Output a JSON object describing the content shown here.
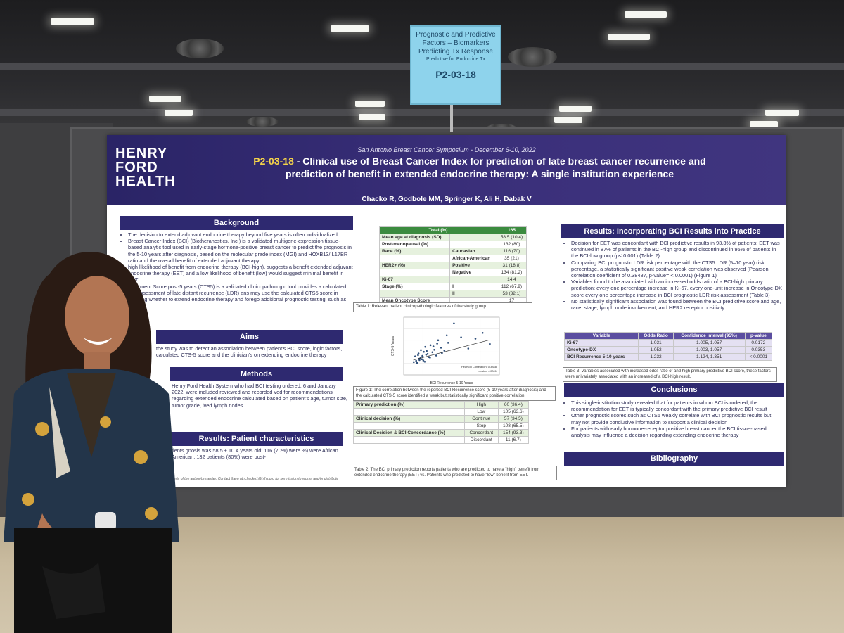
{
  "sign": {
    "line1": "Prognostic and Predictive",
    "line2": "Factors – Biomarkers",
    "line3": "Predicting Tx Response",
    "line4": "Predictive for Endocrine Tx",
    "code": "P2-03-18"
  },
  "poster": {
    "symposium": "San Antonio Breast Cancer Symposium - December 6-10, 2022",
    "logo": [
      "HENRY",
      "FORD",
      "HEALTH"
    ],
    "title_code": "P2-03-18",
    "title_line1": " - Clinical use of Breast Cancer Index for prediction of late breast cancer recurrence and",
    "title_line2": "prediction of benefit in extended endocrine therapy: A single institution experience",
    "authors": "Chacko R, Godbole MM, Springer K, Ali H, Dabak V"
  },
  "sections": {
    "background": "Background",
    "aims": "Aims",
    "methods": "Methods",
    "results_patients": "Results: Patient characteristics",
    "results_bci": "Results: Incorporating BCI Results into Practice",
    "conclusions": "Conclusions",
    "bibliography": "Bibliography"
  },
  "background_items": [
    "The decision to extend adjuvant endocrine therapy beyond five years is often individualized",
    "Breast Cancer Index (BCI) (Biotheranostics, Inc.) is a validated multigene-expression tissue-based analytic tool used in early-stage hormone-positive breast cancer to predict the prognosis in the 5-10 years after diagnosis, based on the molecular grade index (MGI) and HOXB13/IL17BR ratio and the overall benefit of extended adjuvant therapy",
    "high likelihood of benefit from endocrine therapy (BCI-high), suggests a benefit extended adjuvant endocrine therapy (EET) and a low likelihood of benefit (low) would suggest minimal benefit in EET",
    "Treatment Score post-5 years (CTS5) is a validated clinicopathologic tool provides a calculated risk assessment of late distant recurrence (LDR) ans may use the calculated CTS5 score in deciding whether to extend endocrine therapy and forego additional prognostic testing, such as BCI"
  ],
  "aims_text": "the study was to detect an association between patient's BCI score, logic factors, calculated CTS-5 score and the clinician's on extending endocrine therapy",
  "methods_text": "Henry Ford Health System who had BCI testing ordered, 6 and January 2022, were included reviewed and recorded ved for recommendations regarding extended endocrine calculated based on patient's age, tumor size, tumor grade, lved lymph nodes",
  "results_patients_text": "tients gnosis was 58.5 ± 10.4 years old; 116 (70%) were %) were African American; 132 patients (80%) were post-",
  "table1": {
    "header": [
      "Total (%)",
      "165"
    ],
    "rows": [
      [
        "Mean age at diagnosis (SD)",
        "",
        "58.5 (10.4)"
      ],
      [
        "Post-menopausal (%)",
        "",
        "132 (80)"
      ],
      [
        "Race (%)",
        "Caucasian",
        "116 (70)"
      ],
      [
        "",
        "African-American",
        "35 (21)"
      ],
      [
        "HER2+ (%)",
        "Positive",
        "31 (18.8)"
      ],
      [
        "",
        "Negative",
        "134 (81.2)"
      ],
      [
        "Ki-67",
        "",
        "14.4"
      ],
      [
        "Stage (%)",
        "I",
        "112 (67.9)"
      ],
      [
        "",
        "II",
        "53 (32.1)"
      ],
      [
        "Mean Oncotype Score",
        "",
        "17"
      ]
    ],
    "caption": "Table 1: Relevant patient clinicopathologic features of the study group."
  },
  "chart_data": {
    "type": "scatter",
    "title": "",
    "xlabel": "BCI Recurrence 5-10 Years",
    "ylabel": "CTS-5 Years",
    "annotation": "Pearson Correlation: 0.3848",
    "annotation2": "p-value < 0001",
    "x": [
      2.1,
      2.4,
      2.6,
      2.8,
      3.0,
      3.1,
      3.3,
      3.5,
      3.6,
      3.8,
      4.0,
      4.2,
      4.4,
      4.5,
      4.7,
      5.0,
      5.3,
      5.6,
      6.0,
      6.4,
      6.8,
      7.2,
      7.8,
      8.5,
      9.3,
      10.5,
      12.0,
      13.5,
      15.0,
      16.5,
      18.0,
      3.2,
      3.9,
      4.1,
      4.8,
      5.5,
      6.2,
      7.0,
      8.0,
      9.0
    ],
    "y": [
      3.1,
      4.5,
      3.4,
      2.9,
      4.8,
      5.2,
      3.6,
      4.1,
      6.0,
      3.8,
      4.4,
      5.6,
      3.2,
      6.8,
      4.9,
      5.1,
      4.3,
      7.2,
      5.5,
      6.1,
      4.7,
      8.4,
      6.6,
      5.9,
      7.8,
      12.5,
      9.1,
      6.4,
      8.8,
      10.2,
      7.5,
      3.9,
      4.6,
      3.5,
      5.8,
      4.2,
      6.9,
      7.6,
      5.3,
      9.6
    ],
    "trend": [
      [
        2.0,
        3.6
      ],
      [
        18.0,
        8.5
      ]
    ],
    "caption": "Figure 1: The correlation between the reported BCI Recurrence score (5-10 years after diagnosis) and the calculated CTS-5 score identified a weak but statistically significant positive correlation."
  },
  "table2": {
    "rows": [
      [
        "Primary prediction (%)",
        "High",
        "60 (36.4)"
      ],
      [
        "",
        "Low",
        "105 (63.6)"
      ],
      [
        "Clinical decision (%)",
        "Continue",
        "57 (34.5)"
      ],
      [
        "",
        "Stop",
        "108 (65.5)"
      ],
      [
        "Clinical Decision & BCI Concordance (%)",
        "Concordant",
        "154 (93.3)"
      ],
      [
        "",
        "Discordant",
        "11 (6.7)"
      ]
    ],
    "caption": "Table 2: The BCI primary prediction reports patients who are predicted to have a \"high\" benefit from extended endocrine therapy (EET) vs. Patients who predicted to have \"low\" benefit from EET."
  },
  "results_bci_items": [
    "Decision for EET was concordant with BCI predictive results in 93.3% of patients; EET was continued in 87% of patients in the BCI-high group and discontinued in 95% of patients in the BCI-low group (p< 0.001) (Table 2)",
    "Comparing BCI prognostic LDR risk percentage with the CTS5 LDR (5–10 year) risk percentage, a statistically significant positive weak correlation was observed (Pearson correlation coefficient of 0.38487, p-value= < 0.0001) (Figure 1)",
    "Variables found to be associated with an increased odds ratio of a BCI-high primary prediction: every one percentage increase in Ki-67, every one-unit increase in Oncotype-DX score every one percentage increase in BCI prognostic LDR risk assessment (Table 3)",
    "No statistically significant association was found between the BCI predictive score and age, race, stage, lymph node involvement, and HER2 receptor positivity"
  ],
  "table3": {
    "header": [
      "Variable",
      "Odds Ratio",
      "Confidence Interval (95%)",
      "p-value"
    ],
    "rows": [
      [
        "Ki-67",
        "1.031",
        "1.005, 1.057",
        "0.0172"
      ],
      [
        "Oncotype-DX",
        "1.052",
        "1.003, 1.057",
        "0.0353"
      ],
      [
        "BCI Recurrence 5-10 years",
        "1.232",
        "1.124, 1.351",
        "< 0.0001"
      ]
    ],
    "caption": "Table 3: Variables associated with increased odds ratio of and high primary predictive BCI score, these factors were univariately associated with an increased of a BCI-high result."
  },
  "conclusions_items": [
    "This single-institution study revealed that for patients in whom BCI is ordered, the recommendation for EET is typically concordant with the primary predictive BCI result",
    "Other prognostic scores such as CTS5 weakly correlate with BCI prognostic results but may not provide conclusive information to support a clinical decision",
    "For patients with early hormone-receptor positive breast cancer the BCI tissue-based analysis may influence a decision regarding extending endocrine therapy"
  ],
  "footer_note": "property of the author/presenter. Contact them at rchacko1@hfhs.org for permission to reprint and/or distribute",
  "colors": {
    "header": "#2e2970",
    "accent_green": "#3b8b3f",
    "code_yellow": "#f3d24a",
    "sign": "#8ed3ec"
  }
}
